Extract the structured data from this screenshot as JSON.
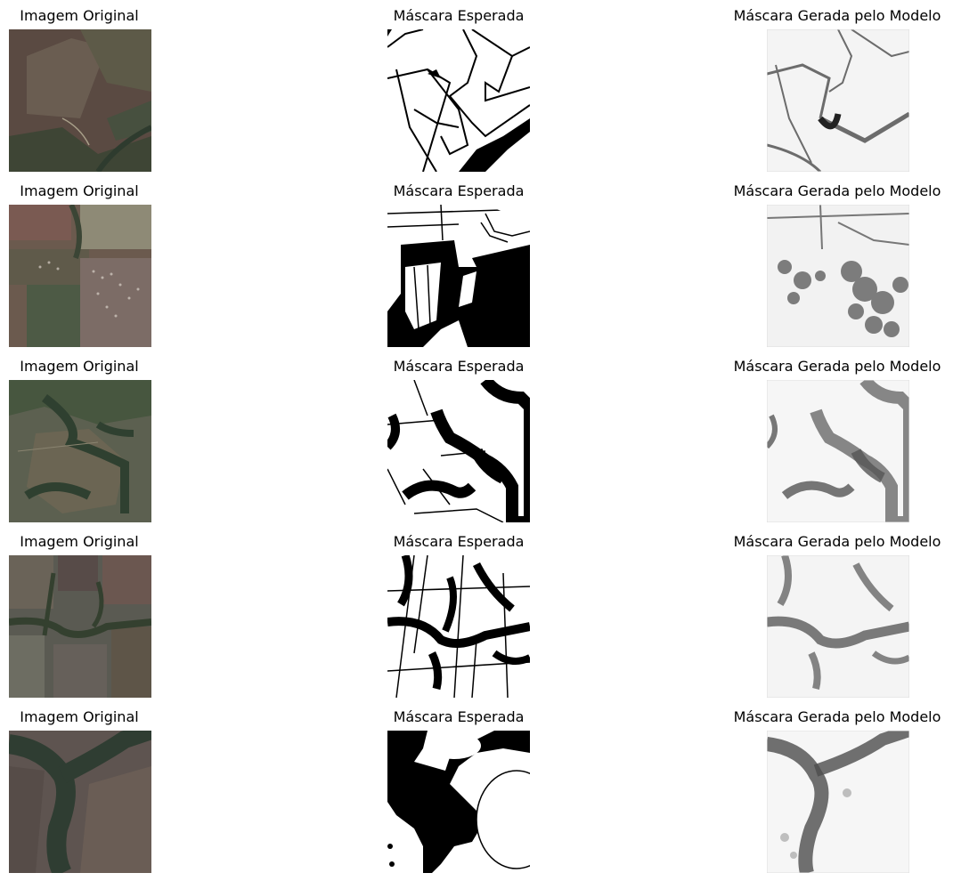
{
  "figure": {
    "column_titles": [
      "Imagem Original",
      "Máscara Esperada",
      "Máscara Gerada pelo Modelo"
    ],
    "rows": [
      {
        "original": "Imagem Original",
        "expected": "Máscara Esperada",
        "generated": "Máscara Gerada pelo Modelo"
      },
      {
        "original": "Imagem Original",
        "expected": "Máscara Esperada",
        "generated": "Máscara Gerada pelo Modelo"
      },
      {
        "original": "Imagem Original",
        "expected": "Máscara Esperada",
        "generated": "Máscara Gerada pelo Modelo"
      },
      {
        "original": "Imagem Original",
        "expected": "Máscara Esperada",
        "generated": "Máscara Gerada pelo Modelo"
      },
      {
        "original": "Imagem Original",
        "expected": "Máscara Esperada",
        "generated": "Máscara Gerada pelo Modelo"
      }
    ]
  },
  "colors": {
    "background": "#ffffff",
    "mask_foreground": "#000000",
    "mask_background": "#ffffff",
    "satellite_base": "#4a4a3c"
  }
}
